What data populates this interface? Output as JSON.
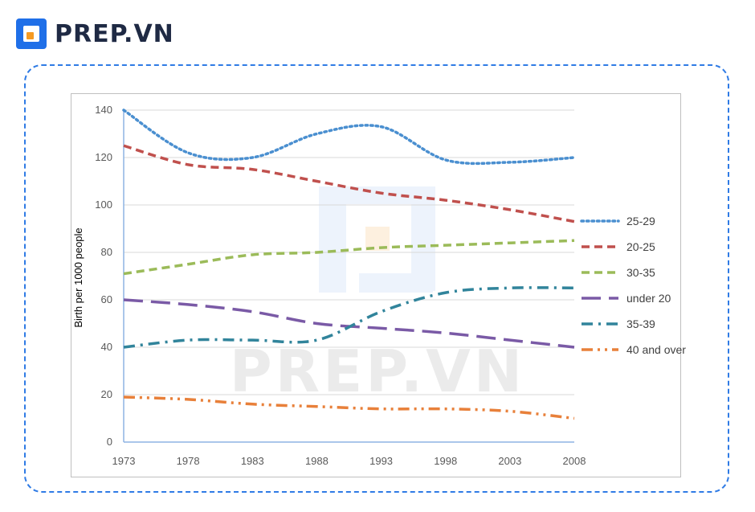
{
  "brand": {
    "name": "PREP.VN",
    "logo_icon": "prep-logo-icon"
  },
  "watermark": {
    "text": "PREP.VN"
  },
  "chart_data": {
    "type": "line",
    "title": "",
    "xlabel": "",
    "ylabel": "Birth per 1000 people",
    "x": [
      1973,
      1978,
      1983,
      1988,
      1993,
      1998,
      2003,
      2008
    ],
    "xticks": [
      "1973",
      "1978",
      "1983",
      "1988",
      "1993",
      "1998",
      "2003",
      "2008"
    ],
    "yticks": [
      "0",
      "20",
      "40",
      "60",
      "80",
      "100",
      "120",
      "140"
    ],
    "ylim": [
      0,
      140
    ],
    "grid": true,
    "legend_position": "right",
    "series": [
      {
        "name": "25-29",
        "color": "#4a8fd0",
        "style": "dotted",
        "values": [
          140,
          122,
          120,
          130,
          133,
          119,
          118,
          120
        ]
      },
      {
        "name": "20-25",
        "color": "#c0504d",
        "style": "dashed",
        "values": [
          125,
          117,
          115,
          110,
          105,
          102,
          98,
          93
        ]
      },
      {
        "name": "30-35",
        "color": "#9bbb59",
        "style": "dashed",
        "values": [
          71,
          75,
          79,
          80,
          82,
          83,
          84,
          85
        ]
      },
      {
        "name": "under 20",
        "color": "#7a5aa6",
        "style": "longdash",
        "values": [
          60,
          58,
          55,
          50,
          48,
          46,
          43,
          40
        ]
      },
      {
        "name": "35-39",
        "color": "#31849b",
        "style": "dashdot",
        "values": [
          40,
          43,
          43,
          43,
          55,
          63,
          65,
          65
        ]
      },
      {
        "name": "40 and over",
        "color": "#e8803a",
        "style": "dashdotdot",
        "values": [
          19,
          18,
          16,
          15,
          14,
          14,
          13,
          10
        ]
      }
    ]
  }
}
